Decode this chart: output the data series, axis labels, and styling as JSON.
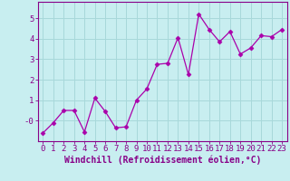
{
  "x": [
    0,
    1,
    2,
    3,
    4,
    5,
    6,
    7,
    8,
    9,
    10,
    11,
    12,
    13,
    14,
    15,
    16,
    17,
    18,
    19,
    20,
    21,
    22,
    23
  ],
  "y": [
    -0.6,
    -0.1,
    0.5,
    0.5,
    -0.55,
    1.1,
    0.45,
    -0.35,
    -0.3,
    1.0,
    1.55,
    2.75,
    2.8,
    4.05,
    2.25,
    5.2,
    4.45,
    3.85,
    4.35,
    3.25,
    3.55,
    4.15,
    4.1,
    4.45
  ],
  "line_color": "#AA00AA",
  "marker": "D",
  "marker_size": 2.5,
  "bg_color": "#C8EEF0",
  "grid_color": "#A8D8DA",
  "xlabel": "Windchill (Refroidissement éolien,°C)",
  "ylim": [
    -1.0,
    5.8
  ],
  "xlim": [
    -0.5,
    23.5
  ],
  "yticks": [
    0,
    1,
    2,
    3,
    4,
    5
  ],
  "ytick_labels": [
    "-0",
    "1",
    "2",
    "3",
    "4",
    "5"
  ],
  "xticks": [
    0,
    1,
    2,
    3,
    4,
    5,
    6,
    7,
    8,
    9,
    10,
    11,
    12,
    13,
    14,
    15,
    16,
    17,
    18,
    19,
    20,
    21,
    22,
    23
  ],
  "axis_color": "#880088",
  "tick_font_size": 6.5,
  "xlabel_font_size": 7.0
}
